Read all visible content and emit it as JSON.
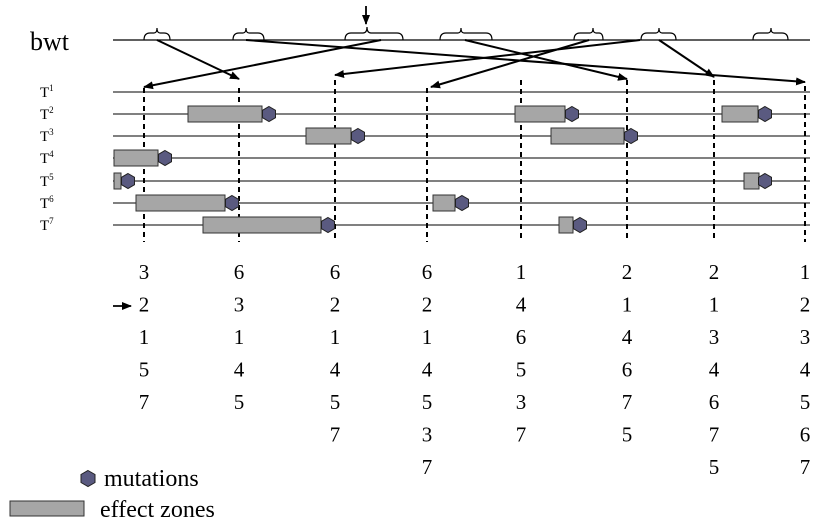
{
  "bwt_label": "bwt",
  "tracks": [
    {
      "base": "T",
      "sup": "1"
    },
    {
      "base": "T",
      "sup": "2"
    },
    {
      "base": "T",
      "sup": "3"
    },
    {
      "base": "T",
      "sup": "4"
    },
    {
      "base": "T",
      "sup": "5"
    },
    {
      "base": "T",
      "sup": "6"
    },
    {
      "base": "T",
      "sup": "7"
    }
  ],
  "columns": [
    [
      "3",
      "2",
      "1",
      "5",
      "7"
    ],
    [
      "6",
      "3",
      "1",
      "4",
      "5"
    ],
    [
      "6",
      "2",
      "1",
      "4",
      "5",
      "7"
    ],
    [
      "6",
      "2",
      "1",
      "4",
      "5",
      "3",
      "7"
    ],
    [
      "1",
      "4",
      "6",
      "5",
      "3",
      "7"
    ],
    [
      "2",
      "1",
      "4",
      "6",
      "7",
      "5"
    ],
    [
      "2",
      "1",
      "3",
      "4",
      "6",
      "7",
      "5"
    ],
    [
      "1",
      "2",
      "3",
      "4",
      "5",
      "6",
      "7"
    ]
  ],
  "legend": {
    "mutations": "mutations",
    "effect_zones": "effect zones"
  },
  "colors": {
    "mutation_fill": "#5a5a80",
    "zone_fill": "#a6a6a6",
    "line": "#000000"
  }
}
